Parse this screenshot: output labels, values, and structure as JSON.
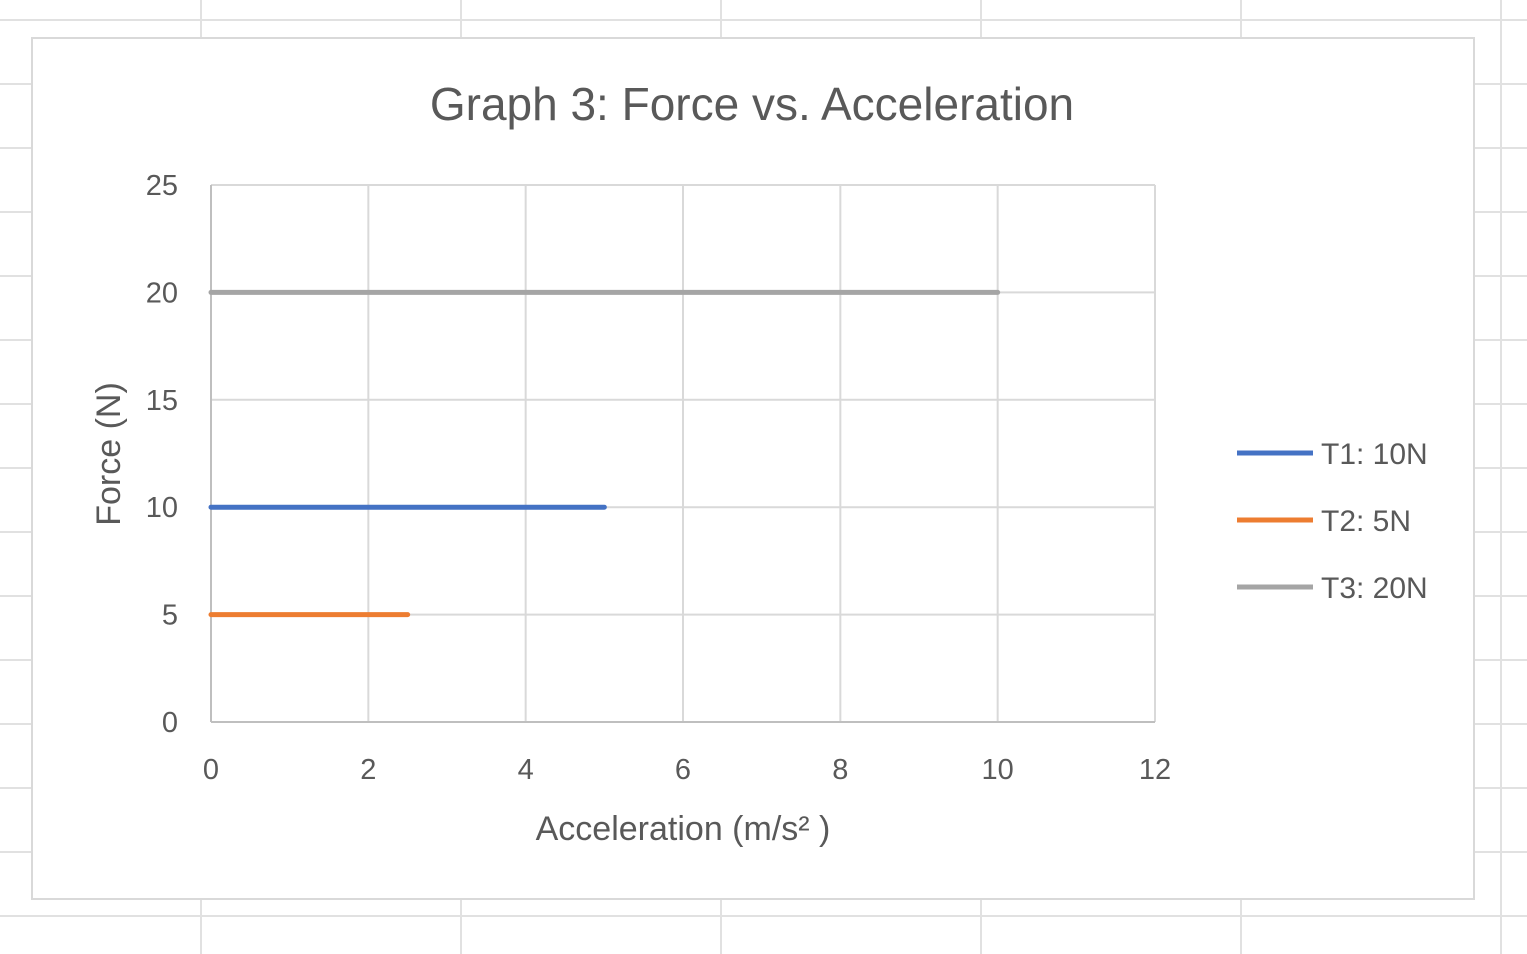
{
  "chart_data": {
    "type": "line",
    "title": "Graph 3: Force vs. Acceleration",
    "xlabel": "Acceleration (m/s² )",
    "ylabel": "Force (N)",
    "xlim": [
      0,
      12
    ],
    "ylim": [
      0,
      25
    ],
    "x_ticks": [
      "0",
      "2",
      "4",
      "6",
      "8",
      "10",
      "12"
    ],
    "y_ticks": [
      "0",
      "5",
      "10",
      "15",
      "20",
      "25"
    ],
    "grid": true,
    "legend_position": "right",
    "series": [
      {
        "name": "T1: 10N",
        "color": "#4472c4",
        "x": [
          0,
          5
        ],
        "y": [
          10,
          10
        ]
      },
      {
        "name": "T2: 5N",
        "color": "#ed7d31",
        "x": [
          0,
          2.5
        ],
        "y": [
          5,
          5
        ]
      },
      {
        "name": "T3: 20N",
        "color": "#a5a5a5",
        "x": [
          0,
          10
        ],
        "y": [
          20,
          20
        ]
      }
    ]
  }
}
